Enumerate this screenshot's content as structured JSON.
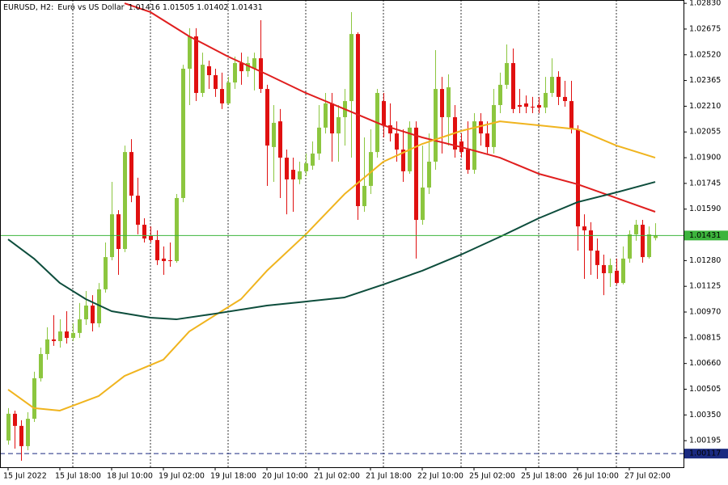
{
  "chart_data": {
    "type": "candlestick",
    "title": "EURUSD, H2:",
    "subtitle": "Euro vs US Dollar",
    "up_color": "#8cc63f",
    "down_color": "#e01010",
    "categories": [
      "15 Jul 2022",
      null,
      null,
      null,
      null,
      null,
      null,
      null,
      "15 Jul 18:00",
      null,
      null,
      null,
      null,
      null,
      null,
      null,
      "18 Jul 10:00",
      null,
      null,
      null,
      null,
      null,
      null,
      null,
      "19 Jul 02:00",
      null,
      null,
      null,
      null,
      null,
      null,
      null,
      "19 Jul 18:00",
      null,
      null,
      null,
      null,
      null,
      null,
      null,
      "20 Jul 10:00",
      null,
      null,
      null,
      null,
      null,
      null,
      null,
      "21 Jul 02:00",
      null,
      null,
      null,
      null,
      null,
      null,
      null,
      "21 Jul 18:00",
      null,
      null,
      null,
      null,
      null,
      null,
      null,
      "22 Jul 10:00",
      null,
      null,
      null,
      null,
      null,
      null,
      null,
      "25 Jul 02:00",
      null,
      null,
      null,
      null,
      null,
      null,
      null,
      "25 Jul 18:00",
      null,
      null,
      null,
      null,
      null,
      null,
      null,
      "26 Jul 10:00",
      null,
      null,
      null,
      null,
      null,
      null,
      null,
      "27 Jul 02:00",
      null,
      null,
      null,
      null
    ],
    "open": [
      1.00196,
      1.00357,
      1.00284,
      1.00162,
      1.00327,
      1.00571,
      1.00717,
      1.00805,
      1.00795,
      1.00853,
      1.00814,
      1.00844,
      1.00926,
      1.01009,
      1.00902,
      1.01107,
      1.01301,
      1.01559,
      1.0135,
      1.01934,
      1.01671,
      1.01496,
      1.01428,
      1.01404,
      1.01292,
      1.01282,
      1.01277,
      1.01657,
      1.02436,
      1.02631,
      1.0229,
      1.02451,
      1.02397,
      1.02314,
      1.02227,
      1.02353,
      1.0247,
      1.02421,
      1.02436,
      1.02499,
      1.02314,
      1.01964,
      1.02119,
      1.019,
      1.01827,
      1.01769,
      1.01818,
      1.01852,
      1.01925,
      1.02081,
      1.02227,
      1.02046,
      1.02144,
      1.02241,
      1.02645,
      1.01608,
      1.0173,
      1.01934,
      1.02241,
      1.02095,
      1.02046,
      1.01949,
      1.01818,
      1.02081,
      1.01525,
      1.0172,
      1.01876,
      1.02314,
      1.02144,
      1.02144,
      1.01998,
      1.01949,
      1.01827,
      1.02119,
      1.02046,
      1.01964,
      1.02217,
      1.02339,
      1.0247,
      1.02217,
      1.02227,
      1.02207,
      1.02217,
      1.02202,
      1.0229,
      1.02387,
      1.02266,
      1.02241,
      1.02071,
      1.01486,
      1.01462,
      1.0134,
      1.01253,
      1.01204,
      1.01219,
      1.01145,
      1.01292,
      1.01438,
      1.01496,
      1.01301,
      1.01416
    ],
    "high": [
      1.00391,
      1.00376,
      1.00318,
      1.00366,
      1.0061,
      1.00756,
      1.00878,
      1.00951,
      1.00926,
      1.00975,
      1.00902,
      1.01024,
      1.01097,
      1.01072,
      1.01145,
      1.01389,
      1.01754,
      1.01584,
      1.01973,
      1.02012,
      1.01779,
      1.01535,
      1.01486,
      1.01462,
      1.01365,
      1.01389,
      1.01681,
      1.0246,
      1.0268,
      1.0268,
      1.02533,
      1.02485,
      1.02436,
      1.02412,
      1.02387,
      1.02509,
      1.02533,
      1.02509,
      1.02533,
      1.02728,
      1.02339,
      1.02217,
      1.02193,
      1.01949,
      1.019,
      1.01876,
      1.01925,
      1.01998,
      1.02217,
      1.0229,
      1.0229,
      1.02217,
      1.02314,
      1.02777,
      1.02655,
      1.02022,
      1.02071,
      1.02314,
      1.0229,
      1.02227,
      1.02119,
      1.02071,
      1.02119,
      1.02119,
      1.01973,
      1.02046,
      1.02548,
      1.02387,
      1.02402,
      1.02217,
      1.02046,
      1.02119,
      1.02168,
      1.02168,
      1.02119,
      1.02314,
      1.02412,
      1.02582,
      1.02558,
      1.02314,
      1.02275,
      1.02266,
      1.02266,
      1.02387,
      1.02499,
      1.02421,
      1.02363,
      1.02363,
      1.02095,
      1.01559,
      1.01511,
      1.01413,
      1.01316,
      1.01292,
      1.01292,
      1.01365,
      1.01462,
      1.01525,
      1.01525,
      1.01486,
      1.01505
    ],
    "low": [
      1.00171,
      1.00147,
      1.00074,
      1.00137,
      1.00308,
      1.00551,
      1.00683,
      1.00766,
      1.00756,
      1.0078,
      1.00795,
      1.00814,
      1.00892,
      1.00853,
      1.00878,
      1.01087,
      1.01282,
      1.01194,
      1.01331,
      1.01632,
      1.01438,
      1.01389,
      1.01389,
      1.01253,
      1.01194,
      1.01243,
      1.01267,
      1.01632,
      1.02217,
      1.02241,
      1.02266,
      1.02314,
      1.02266,
      1.02193,
      1.02217,
      1.02314,
      1.02339,
      1.02387,
      1.02305,
      1.0229,
      1.0173,
      1.01754,
      1.01657,
      1.01559,
      1.01574,
      1.0174,
      1.01788,
      1.01827,
      1.01886,
      1.02046,
      1.01876,
      1.01876,
      1.01973,
      1.019,
      1.01525,
      1.01574,
      1.01681,
      1.019,
      1.02022,
      1.01998,
      1.01876,
      1.01754,
      1.01803,
      1.01292,
      1.01496,
      1.01681,
      1.01827,
      1.01925,
      1.01973,
      1.019,
      1.019,
      1.01803,
      1.01803,
      1.01973,
      1.01925,
      1.01925,
      1.02168,
      1.02314,
      1.02168,
      1.02168,
      1.02168,
      1.02168,
      1.02168,
      1.02168,
      1.02266,
      1.02217,
      1.02207,
      1.02046,
      1.0134,
      1.0117,
      1.01194,
      1.0117,
      1.01072,
      1.01121,
      1.01136,
      1.01136,
      1.01267,
      1.01399,
      1.01267,
      1.01292,
      1.01402
    ],
    "close": [
      1.00357,
      1.00284,
      1.00162,
      1.00327,
      1.00571,
      1.00717,
      1.00805,
      1.00795,
      1.00853,
      1.00814,
      1.00844,
      1.00926,
      1.01009,
      1.00902,
      1.01107,
      1.01301,
      1.01559,
      1.0135,
      1.01934,
      1.01671,
      1.01496,
      1.01413,
      1.01404,
      1.01282,
      1.01277,
      1.01277,
      1.01657,
      1.02436,
      1.02631,
      1.0229,
      1.0246,
      1.02397,
      1.02314,
      1.02227,
      1.02353,
      1.0247,
      1.02421,
      1.0247,
      1.02499,
      1.02314,
      1.01973,
      1.0211,
      1.019,
      1.01769,
      1.01769,
      1.01818,
      1.01866,
      1.01925,
      1.02081,
      1.02227,
      1.02046,
      1.02144,
      1.02241,
      1.02645,
      1.01608,
      1.0173,
      1.01934,
      1.0229,
      1.02095,
      1.02046,
      1.01949,
      1.01818,
      1.02081,
      1.01525,
      1.0172,
      1.01876,
      1.02314,
      1.02144,
      1.02324,
      1.01949,
      1.01934,
      1.01827,
      1.02119,
      1.02046,
      1.01964,
      1.02217,
      1.02339,
      1.0247,
      1.02193,
      1.02207,
      1.02207,
      1.02202,
      1.02202,
      1.0229,
      1.02387,
      1.02266,
      1.02241,
      1.02071,
      1.01486,
      1.01462,
      1.0134,
      1.01253,
      1.01204,
      1.01253,
      1.01145,
      1.01292,
      1.01438,
      1.01496,
      1.01301,
      1.01438,
      1.01431
    ],
    "indicators": [
      {
        "color": "#e01e1e",
        "x": [
          18,
          22,
          28,
          34,
          40,
          46,
          52,
          58,
          64,
          70,
          76,
          82,
          88,
          94,
          100
        ],
        "values": [
          1.0283,
          1.02777,
          1.02631,
          1.02509,
          1.02402,
          1.0229,
          1.02193,
          1.02095,
          1.02022,
          1.01964,
          1.019,
          1.01803,
          1.0174,
          1.01657,
          1.01574
        ]
      },
      {
        "color": "#f0b41e",
        "x": [
          0,
          4,
          8,
          14,
          18,
          24,
          28,
          32,
          36,
          40,
          46,
          52,
          58,
          64,
          70,
          76,
          82,
          88,
          94,
          100
        ],
        "values": [
          1.00503,
          1.00391,
          1.00376,
          1.00464,
          1.00585,
          1.00683,
          1.00853,
          1.00951,
          1.01048,
          1.01219,
          1.01438,
          1.01681,
          1.01876,
          1.01983,
          1.02061,
          1.02119,
          1.02095,
          1.02071,
          1.01973,
          1.019
        ]
      },
      {
        "color": "#0d4d3c",
        "x": [
          0,
          4,
          8,
          12,
          16,
          22,
          26,
          32,
          40,
          46,
          52,
          58,
          64,
          70,
          76,
          82,
          88,
          94,
          100
        ],
        "values": [
          1.01408,
          1.01292,
          1.01145,
          1.01048,
          1.00975,
          1.00936,
          1.00926,
          1.0096,
          1.01009,
          1.01033,
          1.01058,
          1.01136,
          1.01219,
          1.01316,
          1.01423,
          1.01535,
          1.01632,
          1.01691,
          1.01754
        ]
      }
    ],
    "bid_color": "#3cb43c",
    "level": 1.00117,
    "level_color": "#1a2a80",
    "ylim": [
      1.00035,
      1.0285
    ],
    "yticks": [
      {
        "value": 1.0283,
        "label": "1.02830"
      },
      1.02675,
      {
        "value": 1.0252,
        "label": "1.02520"
      },
      1.02365,
      {
        "value": 1.0221,
        "label": "1.02210"
      },
      1.02055,
      {
        "value": 1.019,
        "label": "1.01900"
      },
      1.01745,
      {
        "value": 1.0159,
        "label": "1.01590"
      },
      {
        "value": 1.0128,
        "label": "1.01280"
      },
      1.01125,
      {
        "value": 1.0097,
        "label": "1.00970"
      },
      1.00815,
      {
        "value": 1.0066,
        "label": "1.00660"
      },
      1.00505,
      {
        "value": 1.0035,
        "label": "1.00350"
      },
      1.00195
    ],
    "grid": true
  }
}
